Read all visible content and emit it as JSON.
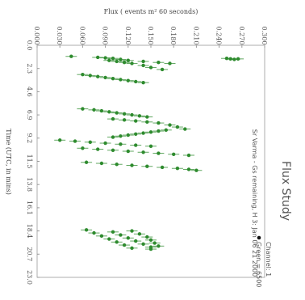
{
  "chart_data": {
    "type": "scatter",
    "title": "Flux Study",
    "subtitle": "Sr Varma - Gs remaining, H 3: Jan 06 21 2000",
    "xlabel": "Time (UTC, in mins)",
    "ylabel": "Flux ( events m² 60 seconds)",
    "xlim": [
      0.0,
      23.0
    ],
    "ylim": [
      0.0,
      0.3
    ],
    "xticks": [
      "0.0",
      "2.3",
      "4.6",
      "6.9",
      "9.2",
      "11.5",
      "13.8",
      "16.1",
      "18.4",
      "20.7",
      "23.0"
    ],
    "yticks": [
      "0.000",
      "0.030",
      "0.060",
      "0.090",
      "0.120",
      "0.150",
      "0.180",
      "0.210",
      "0.240",
      "0.270",
      "0.300"
    ],
    "legend": {
      "placement": "bottom-left",
      "entries": [
        "Green = 6500",
        "Channel: 1"
      ]
    },
    "grid": false,
    "color": "#2e8b2e",
    "series": [
      {
        "values": [
          [
            1.1,
            0.045
          ],
          [
            1.2,
            0.08
          ],
          [
            1.25,
            0.09
          ],
          [
            1.3,
            0.1
          ],
          [
            1.4,
            0.11
          ],
          [
            1.5,
            0.12
          ],
          [
            1.6,
            0.14
          ],
          [
            1.7,
            0.16
          ],
          [
            1.8,
            0.175
          ],
          [
            1.3,
            0.25
          ],
          [
            1.35,
            0.255
          ],
          [
            1.4,
            0.26
          ],
          [
            1.35,
            0.265
          ],
          [
            2.9,
            0.06
          ],
          [
            3.0,
            0.07
          ],
          [
            3.1,
            0.08
          ],
          [
            3.2,
            0.09
          ],
          [
            3.3,
            0.1
          ],
          [
            3.4,
            0.11
          ],
          [
            3.5,
            0.12
          ],
          [
            3.6,
            0.13
          ],
          [
            3.7,
            0.14
          ],
          [
            1.5,
            0.095
          ],
          [
            1.6,
            0.105
          ],
          [
            1.7,
            0.115
          ],
          [
            1.8,
            0.125
          ],
          [
            2.0,
            0.14
          ],
          [
            2.2,
            0.15
          ],
          [
            2.4,
            0.165
          ],
          [
            6.3,
            0.06
          ],
          [
            6.4,
            0.075
          ],
          [
            6.5,
            0.085
          ],
          [
            6.6,
            0.095
          ],
          [
            6.7,
            0.105
          ],
          [
            6.8,
            0.115
          ],
          [
            6.9,
            0.125
          ],
          [
            7.0,
            0.135
          ],
          [
            7.1,
            0.145
          ],
          [
            7.3,
            0.1
          ],
          [
            7.4,
            0.115
          ],
          [
            7.5,
            0.13
          ],
          [
            7.6,
            0.145
          ],
          [
            7.7,
            0.16
          ],
          [
            7.9,
            0.175
          ],
          [
            8.1,
            0.185
          ],
          [
            8.3,
            0.195
          ],
          [
            8.4,
            0.17
          ],
          [
            8.5,
            0.16
          ],
          [
            8.6,
            0.15
          ],
          [
            8.7,
            0.14
          ],
          [
            8.8,
            0.13
          ],
          [
            8.9,
            0.12
          ],
          [
            9.0,
            0.11
          ],
          [
            9.1,
            0.1
          ],
          [
            9.4,
            0.03
          ],
          [
            9.5,
            0.05
          ],
          [
            9.6,
            0.07
          ],
          [
            9.7,
            0.09
          ],
          [
            9.8,
            0.11
          ],
          [
            9.9,
            0.13
          ],
          [
            10.0,
            0.15
          ],
          [
            10.2,
            0.06
          ],
          [
            10.3,
            0.08
          ],
          [
            10.4,
            0.1
          ],
          [
            10.5,
            0.12
          ],
          [
            10.6,
            0.14
          ],
          [
            10.7,
            0.16
          ],
          [
            10.8,
            0.18
          ],
          [
            10.9,
            0.2
          ],
          [
            11.6,
            0.065
          ],
          [
            11.7,
            0.085
          ],
          [
            11.8,
            0.105
          ],
          [
            11.9,
            0.125
          ],
          [
            12.0,
            0.145
          ],
          [
            12.1,
            0.165
          ],
          [
            12.2,
            0.185
          ],
          [
            12.3,
            0.2
          ],
          [
            12.4,
            0.21
          ],
          [
            18.3,
            0.065
          ],
          [
            18.6,
            0.075
          ],
          [
            18.9,
            0.085
          ],
          [
            19.2,
            0.095
          ],
          [
            19.5,
            0.105
          ],
          [
            19.8,
            0.115
          ],
          [
            20.1,
            0.125
          ],
          [
            18.5,
            0.1
          ],
          [
            18.8,
            0.11
          ],
          [
            19.1,
            0.12
          ],
          [
            19.4,
            0.13
          ],
          [
            19.7,
            0.14
          ],
          [
            20.0,
            0.15
          ],
          [
            18.4,
            0.125
          ],
          [
            18.7,
            0.135
          ],
          [
            19.0,
            0.145
          ],
          [
            19.3,
            0.15
          ],
          [
            19.6,
            0.155
          ],
          [
            19.9,
            0.16
          ],
          [
            20.2,
            0.15
          ]
        ]
      }
    ]
  }
}
